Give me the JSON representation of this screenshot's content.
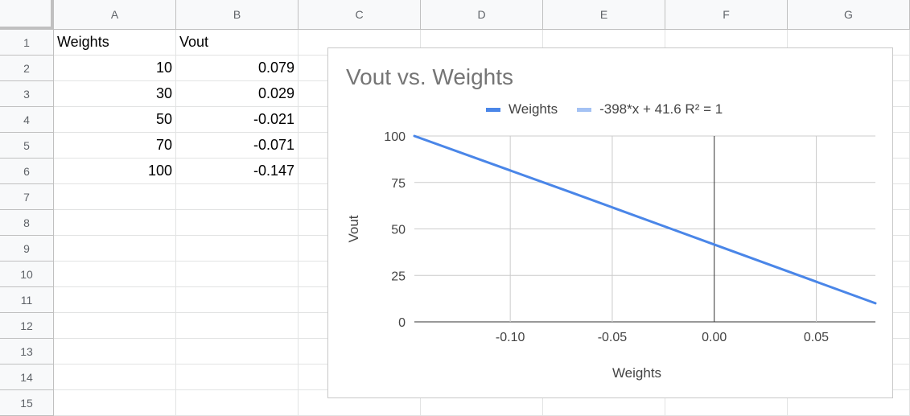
{
  "sheet": {
    "columns": [
      "A",
      "B",
      "C",
      "D",
      "E",
      "F",
      "G"
    ],
    "rows": [
      "1",
      "2",
      "3",
      "4",
      "5",
      "6",
      "7",
      "8",
      "9",
      "10",
      "11",
      "12",
      "13",
      "14",
      "15"
    ],
    "cells": {
      "A1": "Weights",
      "B1": "Vout",
      "A2": "10",
      "B2": "0.079",
      "A3": "30",
      "B3": "0.029",
      "A4": "50",
      "B4": "-0.021",
      "A5": "70",
      "B5": "-0.071",
      "A6": "100",
      "B6": "-0.147"
    }
  },
  "chart_data": {
    "type": "line",
    "title": "Vout vs. Weights",
    "xlabel": "Weights",
    "ylabel": "Vout",
    "xlim": [
      -0.147,
      0.079
    ],
    "ylim": [
      0,
      100
    ],
    "x_ticks": [
      -0.1,
      -0.05,
      0.0,
      0.05
    ],
    "x_tick_labels": [
      "-0.10",
      "-0.05",
      "0.00",
      "0.05"
    ],
    "y_ticks": [
      0,
      25,
      50,
      75,
      100
    ],
    "y_tick_labels": [
      "0",
      "25",
      "50",
      "75",
      "100"
    ],
    "grid": true,
    "legend_position": "top",
    "series": [
      {
        "name": "Weights",
        "color": "#4a86e8",
        "x": [
          -0.147,
          -0.071,
          -0.021,
          0.029,
          0.079
        ],
        "y": [
          100,
          70,
          50,
          30,
          10
        ]
      },
      {
        "name": "-398*x + 41.6 R² = 1",
        "color": "#a4c2f4",
        "trendline": true
      }
    ]
  }
}
